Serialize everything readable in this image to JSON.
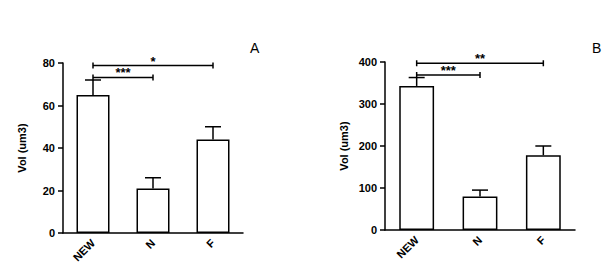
{
  "chart_data": [
    {
      "type": "bar",
      "title": "A",
      "y_label": "Vol (um3)",
      "categories": [
        "NEW",
        "N",
        "F"
      ],
      "values": [
        65,
        21,
        44
      ],
      "errors": [
        7,
        5,
        6
      ],
      "color": "#ffffff",
      "ylim": [
        0,
        80
      ],
      "yticks": [
        0,
        20,
        40,
        60,
        80
      ],
      "grid": false,
      "annotations": [
        {
          "from": "NEW",
          "to": "N",
          "text": "***"
        },
        {
          "from": "NEW",
          "to": "F",
          "text": "*"
        }
      ]
    },
    {
      "type": "bar",
      "title": "B",
      "y_label": "Vol (um3)",
      "categories": [
        "NEW",
        "N",
        "F"
      ],
      "values": [
        343,
        80,
        178
      ],
      "errors": [
        20,
        15,
        22
      ],
      "color": "#ffffff",
      "ylim": [
        0,
        400
      ],
      "yticks": [
        0,
        100,
        200,
        300,
        400
      ],
      "grid": false,
      "annotations": [
        {
          "from": "NEW",
          "to": "N",
          "text": "***"
        },
        {
          "from": "NEW",
          "to": "F",
          "text": "**"
        }
      ]
    }
  ]
}
